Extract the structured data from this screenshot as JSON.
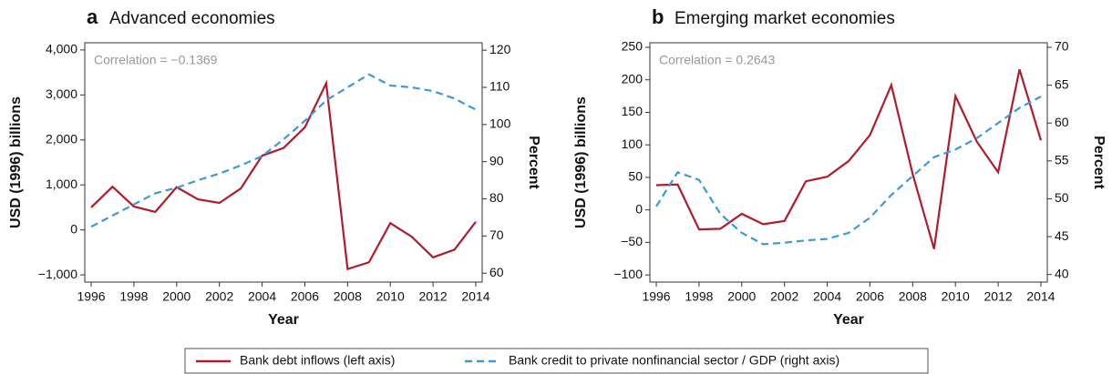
{
  "chart_data": [
    {
      "type": "line",
      "panel": "a",
      "title": "Advanced economies",
      "x_label": "Year",
      "y_label": "USD (1996) billions",
      "y2_label": "Percent",
      "annotation": "Correlation = −0.1369",
      "x": [
        1996,
        1997,
        1998,
        1999,
        2000,
        2001,
        2002,
        2003,
        2004,
        2005,
        2006,
        2007,
        2008,
        2009,
        2010,
        2011,
        2012,
        2013,
        2014
      ],
      "xlim": [
        1995.7,
        2014.3
      ],
      "xticks": [
        1996,
        1998,
        2000,
        2002,
        2004,
        2006,
        2008,
        2010,
        2012,
        2014
      ],
      "ylim": [
        -1160,
        4160
      ],
      "yticks": [
        {
          "value": -1000,
          "label": "−1,000"
        },
        0,
        {
          "value": 1000,
          "label": "1,000"
        },
        {
          "value": 2000,
          "label": "2,000"
        },
        {
          "value": 3000,
          "label": "3,000"
        },
        {
          "value": 4000,
          "label": "4,000"
        }
      ],
      "y2lim": [
        57.6,
        122
      ],
      "y2ticks": [
        60,
        70,
        80,
        90,
        100,
        110,
        120
      ],
      "series": [
        {
          "name": "Bank debt inflows (left axis)",
          "color": "#b01c2e",
          "values": [
            500,
            960,
            520,
            400,
            950,
            680,
            600,
            920,
            1650,
            1820,
            2280,
            3260,
            -870,
            -720,
            150,
            -150,
            -610,
            -440,
            180
          ]
        },
        {
          "name": "Bank credit to private nonfinancial sector / GDP (right axis)",
          "color": "#3d9ad6",
          "axis": "y2",
          "dashed": true,
          "values": [
            72.5,
            75.5,
            78.5,
            81.5,
            83,
            85,
            86.8,
            89,
            91.5,
            96,
            101,
            106.5,
            110,
            113.5,
            110.5,
            110,
            109,
            107,
            104
          ]
        }
      ]
    },
    {
      "type": "line",
      "panel": "b",
      "title": "Emerging market economies",
      "x_label": "Year",
      "y_label": "USD (1996) billions",
      "y2_label": "Percent",
      "annotation": "Correlation = 0.2643",
      "x": [
        1996,
        1997,
        1998,
        1999,
        2000,
        2001,
        2002,
        2003,
        2004,
        2005,
        2006,
        2007,
        2008,
        2009,
        2010,
        2011,
        2012,
        2013,
        2014
      ],
      "xlim": [
        1995.7,
        2014.3
      ],
      "xticks": [
        1996,
        1998,
        2000,
        2002,
        2004,
        2006,
        2008,
        2010,
        2012,
        2014
      ],
      "ylim": [
        -111,
        257
      ],
      "yticks": [
        {
          "value": -100,
          "label": "−100"
        },
        {
          "value": -50,
          "label": "−50"
        },
        0,
        50,
        100,
        150,
        200,
        250
      ],
      "y2lim": [
        39.0,
        70.6
      ],
      "y2ticks": [
        40,
        45,
        50,
        55,
        60,
        65,
        70
      ],
      "series": [
        {
          "name": "Bank debt inflows (left axis)",
          "color": "#b01c2e",
          "values": [
            38,
            39,
            -30,
            -29,
            -6,
            -22,
            -17,
            44,
            51,
            75,
            115,
            192,
            55,
            -60,
            175,
            105,
            58,
            216,
            107
          ]
        },
        {
          "name": "Bank credit to private nonfinancial sector / GDP (right axis)",
          "color": "#3d9ad6",
          "axis": "y2",
          "dashed": true,
          "values": [
            49,
            53.5,
            52.5,
            48,
            45.5,
            44,
            44.2,
            44.5,
            44.7,
            45.5,
            47.5,
            50.5,
            53,
            55.5,
            56.5,
            58,
            60,
            62,
            63.5
          ]
        }
      ]
    }
  ]
}
